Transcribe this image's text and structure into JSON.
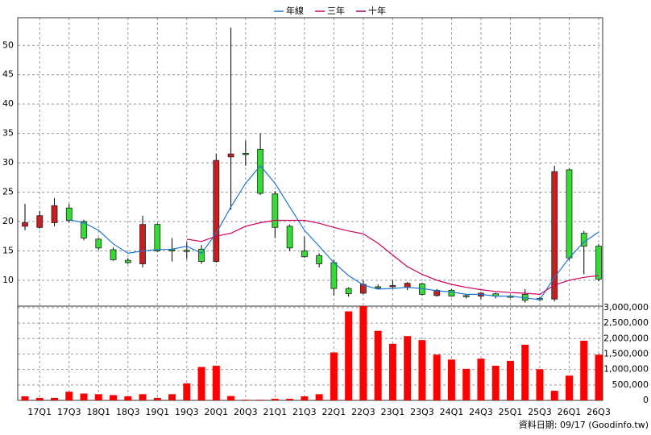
{
  "chart_data": {
    "type": "candlestick",
    "categories": [
      null,
      "17Q1",
      null,
      "17Q3",
      null,
      "18Q1",
      null,
      "18Q3",
      null,
      "19Q1",
      null,
      "19Q3",
      null,
      "20Q1",
      null,
      "20Q3",
      null,
      "21Q1",
      null,
      "21Q3",
      null,
      "22Q1",
      null,
      "22Q3",
      null,
      "23Q1",
      null,
      "23Q3",
      null,
      "24Q1",
      null,
      "24Q3",
      null,
      "25Q1",
      null,
      "25Q3",
      null,
      "26Q1",
      null,
      "26Q3"
    ],
    "open": [
      19.2,
      19,
      19.8,
      22.3,
      20,
      17,
      15.2,
      13.4,
      12.8,
      19.5,
      15.2,
      15.1,
      15.3,
      13.2,
      31,
      31.6,
      32.3,
      24.7,
      19.2,
      15,
      14.2,
      13,
      8.6,
      7.8,
      8.9,
      8.9,
      8.8,
      9.4,
      7.4,
      8.3,
      7.4,
      7.3,
      7.7,
      7.3,
      7.6,
      6.9,
      6.8,
      28.8,
      18,
      15.8
    ],
    "high": [
      23,
      21.8,
      24,
      23,
      20.3,
      17.2,
      15.6,
      13.8,
      21,
      19.7,
      17.2,
      16.5,
      16,
      31.5,
      53,
      33.8,
      35,
      25.2,
      19.5,
      17.4,
      14.6,
      13.5,
      8.8,
      10,
      9.3,
      10,
      9.7,
      9.6,
      8.5,
      8.5,
      7.6,
      8,
      7.9,
      7.5,
      8.5,
      7.2,
      29.5,
      29,
      18.4,
      16.2
    ],
    "low": [
      18.5,
      18.8,
      19.2,
      19.8,
      16.8,
      15.2,
      13.3,
      12.8,
      12.2,
      14.8,
      13.2,
      13.6,
      12.8,
      13,
      22,
      29.5,
      24.5,
      17.2,
      15,
      13.8,
      12.2,
      7.4,
      7.2,
      7.6,
      8.4,
      8.6,
      8.3,
      7.4,
      7.2,
      7.2,
      6.9,
      6.8,
      6.9,
      7,
      6.2,
      6.4,
      6.4,
      13.4,
      11,
      9.8
    ],
    "close": [
      19.8,
      21,
      22.7,
      20.2,
      17.2,
      15.5,
      13.5,
      13,
      19.5,
      15,
      15,
      15,
      13.2,
      30.4,
      31.5,
      31.4,
      24.8,
      19,
      15.5,
      14,
      12.8,
      8.6,
      7.7,
      9.3,
      8.8,
      9.1,
      9.5,
      7.6,
      8.3,
      7.3,
      7.2,
      7.8,
      7.3,
      7.2,
      6.6,
      6.8,
      28.5,
      13.8,
      15.8,
      10.2
    ],
    "up_color": "#c81e1e",
    "down_color": "#33dd33",
    "series": [
      {
        "name": "年線",
        "color": "#1e78d0",
        "values": [
          null,
          null,
          null,
          20.3,
          19.8,
          18.5,
          16.2,
          14.6,
          15,
          15.2,
          15.3,
          15.8,
          14.6,
          18,
          22.5,
          26.5,
          29.5,
          26.5,
          22.5,
          18.5,
          15.8,
          13,
          10.8,
          9.2,
          8.5,
          8.6,
          8.8,
          8.6,
          8.2,
          8,
          7.6,
          7.6,
          7.3,
          7.3,
          7,
          6.7,
          10.5,
          13.8,
          16.5,
          18.2
        ]
      },
      {
        "name": "三年",
        "color": "#d0005c",
        "values": [
          null,
          null,
          null,
          null,
          null,
          null,
          null,
          null,
          null,
          null,
          null,
          17,
          16.6,
          17.5,
          18,
          19.2,
          19.8,
          20.2,
          20.2,
          20.2,
          19.7,
          19,
          18.4,
          17.9,
          16.3,
          14.3,
          12.3,
          11,
          10,
          9.3,
          8.8,
          8.4,
          8.1,
          7.9,
          7.8,
          7.6,
          9.2,
          10,
          10.5,
          10.8
        ]
      },
      {
        "name": "十年",
        "color": "#a0006e",
        "values": [
          null,
          null,
          null,
          null,
          null,
          null,
          null,
          null,
          null,
          null,
          null,
          null,
          null,
          null,
          null,
          null,
          null,
          null,
          null,
          null,
          null,
          null,
          null,
          null,
          null,
          null,
          null,
          null,
          null,
          null,
          null,
          null,
          null,
          null,
          null,
          null,
          null,
          null,
          null,
          null
        ]
      }
    ],
    "ylim": [
      5.6,
      54.7
    ],
    "yticks": [
      10,
      15,
      20,
      25,
      30,
      35,
      40,
      45,
      50
    ],
    "volume": {
      "color": "#ff0000",
      "values": [
        130000,
        80000,
        80000,
        280000,
        220000,
        200000,
        170000,
        130000,
        200000,
        80000,
        200000,
        550000,
        1080000,
        1120000,
        140000,
        20000,
        20000,
        50000,
        50000,
        130000,
        200000,
        1550000,
        2880000,
        3050000,
        2250000,
        1830000,
        2080000,
        1950000,
        1480000,
        1320000,
        1020000,
        1350000,
        1120000,
        1280000,
        1800000,
        1010000,
        310000,
        800000,
        1930000,
        1480000
      ],
      "ylim": [
        0,
        3050000
      ],
      "yticks": [
        {
          "value": 0,
          "label": "0"
        },
        {
          "value": 500000,
          "label": "500,000"
        },
        {
          "value": 1000000,
          "label": "1,000,000"
        },
        {
          "value": 1500000,
          "label": "1,500,000"
        },
        {
          "value": 2000000,
          "label": "2,000,000"
        },
        {
          "value": 2500000,
          "label": "2,500,000"
        },
        {
          "value": 3000000,
          "label": "3,000,000"
        }
      ]
    },
    "grid": true,
    "legend": "top",
    "source": "資料日期: 09/17 (Goodinfo.tw)"
  }
}
